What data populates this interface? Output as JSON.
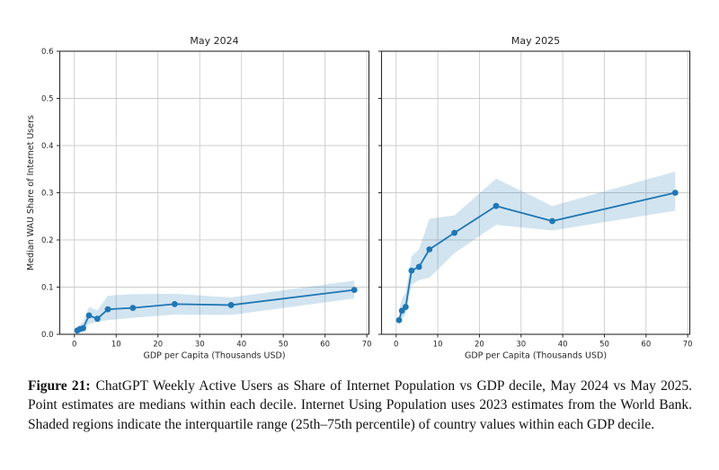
{
  "figure": {
    "caption_label": "Figure 21:",
    "caption_text": "ChatGPT Weekly Active Users as Share of Internet Population vs GDP decile, May 2024 vs May 2025. Point estimates are medians within each decile. Internet Using Population uses 2023 estimates from the World Bank. Shaded regions indicate the interquartile range (25th–75th percentile) of country values within each GDP decile."
  },
  "colors": {
    "line": "#1f77b4",
    "marker": "#1f77b4",
    "band": "rgba(31,119,180,0.2)",
    "grid": "#cccccc",
    "spine": "#2b2b2b",
    "text": "#262626"
  },
  "chart_data": [
    {
      "type": "line",
      "title": "May 2024",
      "xlabel": "GDP per Capita (Thousands USD)",
      "ylabel": "Median WAU Share of Internet Users",
      "xlim": [
        -3.5,
        70.5
      ],
      "ylim": [
        0,
        0.6
      ],
      "xticks": [
        0,
        10,
        20,
        30,
        40,
        50,
        60,
        70
      ],
      "yticks": [
        0.0,
        0.1,
        0.2,
        0.3,
        0.4,
        0.5,
        0.6
      ],
      "grid": true,
      "legend": "none",
      "series": [
        {
          "name": "Median WAU share of internet users",
          "x": [
            0.7,
            1.3,
            2.1,
            3.5,
            5.5,
            8,
            14,
            24,
            37.5,
            67
          ],
          "y": [
            0.008,
            0.011,
            0.013,
            0.04,
            0.033,
            0.053,
            0.056,
            0.064,
            0.062,
            0.094
          ]
        }
      ],
      "band": {
        "name": "IQR (25th–75th percentile)",
        "x": [
          0.7,
          1.3,
          2.1,
          3.5,
          5.5,
          8,
          14,
          24,
          37.5,
          67
        ],
        "lower": [
          0.003,
          0.004,
          0.006,
          0.022,
          0.026,
          0.03,
          0.035,
          0.042,
          0.041,
          0.076
        ],
        "upper": [
          0.016,
          0.02,
          0.027,
          0.058,
          0.051,
          0.082,
          0.085,
          0.086,
          0.078,
          0.114
        ]
      }
    },
    {
      "type": "line",
      "title": "May 2025",
      "xlabel": "GDP per Capita (Thousands USD)",
      "ylabel": "",
      "xlim": [
        -3.5,
        70.5
      ],
      "ylim": [
        0,
        0.6
      ],
      "xticks": [
        0,
        10,
        20,
        30,
        40,
        50,
        60,
        70
      ],
      "yticks": [
        0.0,
        0.1,
        0.2,
        0.3,
        0.4,
        0.5,
        0.6
      ],
      "grid": true,
      "legend": "none",
      "series": [
        {
          "name": "Median WAU share of internet users",
          "x": [
            0.7,
            1.4,
            2.3,
            3.7,
            5.5,
            8,
            14,
            24,
            37.5,
            67
          ],
          "y": [
            0.03,
            0.05,
            0.058,
            0.135,
            0.143,
            0.18,
            0.215,
            0.272,
            0.24,
            0.3
          ]
        }
      ],
      "band": {
        "name": "IQR (25th–75th percentile)",
        "x": [
          0.7,
          1.4,
          2.3,
          3.7,
          5.5,
          8,
          14,
          24,
          37.5,
          67
        ],
        "lower": [
          0.02,
          0.032,
          0.042,
          0.105,
          0.115,
          0.12,
          0.172,
          0.232,
          0.22,
          0.262
        ],
        "upper": [
          0.05,
          0.075,
          0.088,
          0.165,
          0.18,
          0.245,
          0.252,
          0.33,
          0.272,
          0.345
        ]
      }
    }
  ]
}
